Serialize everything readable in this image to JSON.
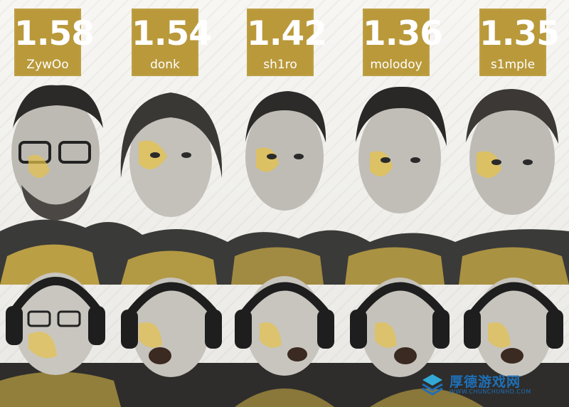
{
  "ratings": [
    {
      "value": "1.58",
      "player": "ZywOo"
    },
    {
      "value": "1.54",
      "player": "donk"
    },
    {
      "value": "1.42",
      "player": "sh1ro"
    },
    {
      "value": "1.36",
      "player": "molodoy"
    },
    {
      "value": "1.35",
      "player": "s1mple"
    }
  ],
  "watermark": {
    "title": "厚德游戏网",
    "url": "WWW.CHUNCHUNHD.COM"
  },
  "colors": {
    "gold": "#b9993a",
    "accent_yellow": "#e6c24a",
    "watermark_blue": "#1e6fb8"
  }
}
